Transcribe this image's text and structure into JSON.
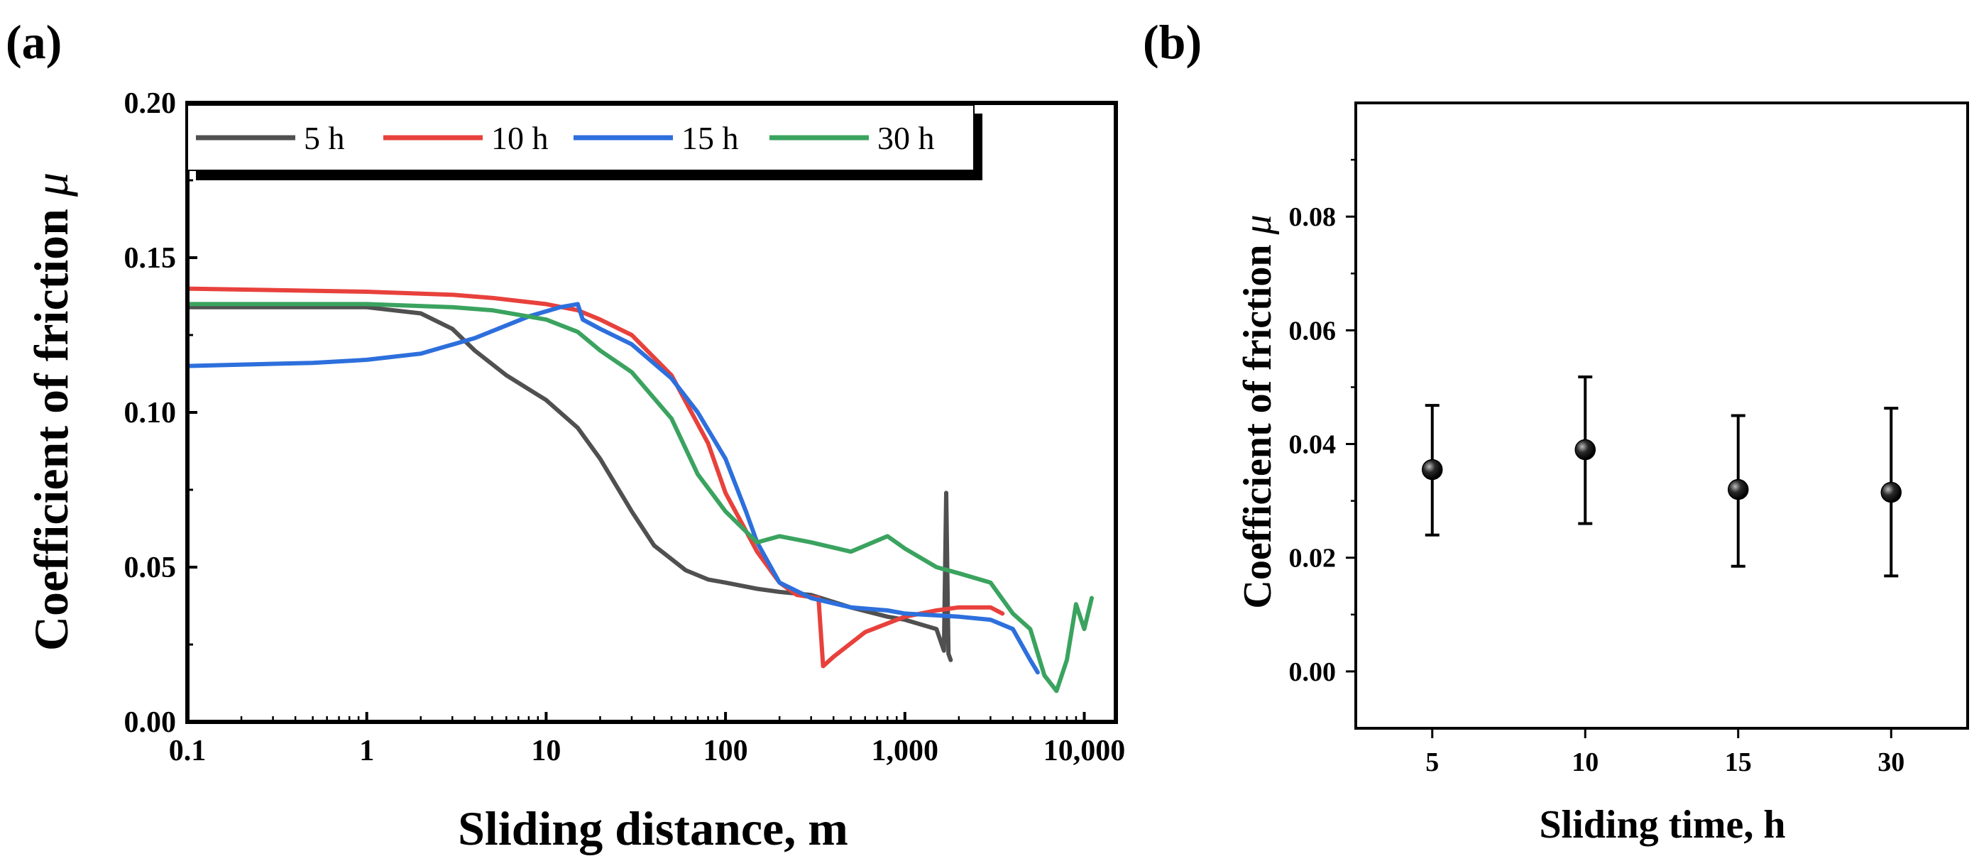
{
  "chart_data": [
    {
      "panel_label": "(a)",
      "type": "line",
      "xscale": "log",
      "xlabel": "Sliding distance, m",
      "ylabel": "Coefficient of friction μ",
      "xlim": [
        0.1,
        15000
      ],
      "ylim": [
        0.0,
        0.2
      ],
      "x_ticks": [
        0.1,
        1,
        10,
        100,
        1000,
        10000
      ],
      "x_tick_labels": [
        "0.1",
        "1",
        "10",
        "100",
        "1,000",
        "10,000"
      ],
      "y_ticks": [
        0.0,
        0.05,
        0.1,
        0.15,
        0.2
      ],
      "y_tick_labels": [
        "0.00",
        "0.05",
        "0.10",
        "0.15",
        "0.20"
      ],
      "legend_position": "top",
      "series": [
        {
          "name": "5 h",
          "color": "#505050",
          "x": [
            0.1,
            0.3,
            1,
            2,
            3,
            4,
            6,
            10,
            15,
            20,
            30,
            40,
            60,
            80,
            100,
            150,
            200,
            300,
            500,
            800,
            1000,
            1500,
            1650,
            1700,
            1750,
            1800
          ],
          "y": [
            0.134,
            0.134,
            0.134,
            0.132,
            0.127,
            0.12,
            0.112,
            0.104,
            0.095,
            0.085,
            0.068,
            0.057,
            0.049,
            0.046,
            0.045,
            0.043,
            0.042,
            0.041,
            0.037,
            0.034,
            0.033,
            0.03,
            0.023,
            0.074,
            0.022,
            0.02
          ]
        },
        {
          "name": "10 h",
          "color": "#e8413c",
          "x": [
            0.1,
            1,
            3,
            5,
            10,
            15,
            20,
            30,
            50,
            80,
            100,
            150,
            200,
            250,
            330,
            350,
            400,
            600,
            1000,
            1500,
            2000,
            3000,
            3500
          ],
          "y": [
            0.14,
            0.139,
            0.138,
            0.137,
            0.135,
            0.133,
            0.13,
            0.125,
            0.112,
            0.09,
            0.074,
            0.055,
            0.045,
            0.041,
            0.04,
            0.018,
            0.021,
            0.029,
            0.034,
            0.036,
            0.037,
            0.037,
            0.035
          ]
        },
        {
          "name": "15 h",
          "color": "#2d6fdc",
          "x": [
            0.1,
            0.5,
            1,
            2,
            4,
            8,
            12,
            15,
            16,
            20,
            30,
            50,
            70,
            100,
            130,
            150,
            200,
            300,
            500,
            800,
            1000,
            2000,
            3000,
            4000,
            5000,
            5500
          ],
          "y": [
            0.115,
            0.116,
            0.117,
            0.119,
            0.124,
            0.131,
            0.134,
            0.135,
            0.13,
            0.127,
            0.122,
            0.111,
            0.1,
            0.085,
            0.068,
            0.058,
            0.045,
            0.04,
            0.037,
            0.036,
            0.035,
            0.034,
            0.033,
            0.03,
            0.02,
            0.016
          ]
        },
        {
          "name": "30 h",
          "color": "#3aa35f",
          "x": [
            0.1,
            1,
            3,
            5,
            10,
            15,
            20,
            30,
            50,
            70,
            100,
            150,
            200,
            300,
            500,
            800,
            1000,
            1500,
            2000,
            3000,
            4000,
            5000,
            6000,
            7000,
            8000,
            9000,
            10000,
            11000
          ],
          "y": [
            0.135,
            0.135,
            0.134,
            0.133,
            0.13,
            0.126,
            0.12,
            0.113,
            0.098,
            0.08,
            0.068,
            0.058,
            0.06,
            0.058,
            0.055,
            0.06,
            0.056,
            0.05,
            0.048,
            0.045,
            0.035,
            0.03,
            0.015,
            0.01,
            0.02,
            0.038,
            0.03,
            0.04
          ]
        }
      ]
    },
    {
      "panel_label": "(b)",
      "type": "scatter",
      "xlabel": "Sliding time, h",
      "ylabel": "Coefficient of friction μ",
      "categories": [
        "5",
        "10",
        "15",
        "30"
      ],
      "values": [
        0.0355,
        0.039,
        0.032,
        0.0315
      ],
      "error_low": [
        0.024,
        0.026,
        0.0185,
        0.0168
      ],
      "error_high": [
        0.0468,
        0.0518,
        0.045,
        0.0463
      ],
      "ylim": [
        -0.01,
        0.1
      ],
      "y_ticks": [
        0.0,
        0.02,
        0.04,
        0.06,
        0.08
      ],
      "y_tick_labels": [
        "0.00",
        "0.02",
        "0.04",
        "0.06",
        "0.08"
      ],
      "marker_color": "#000000"
    }
  ]
}
